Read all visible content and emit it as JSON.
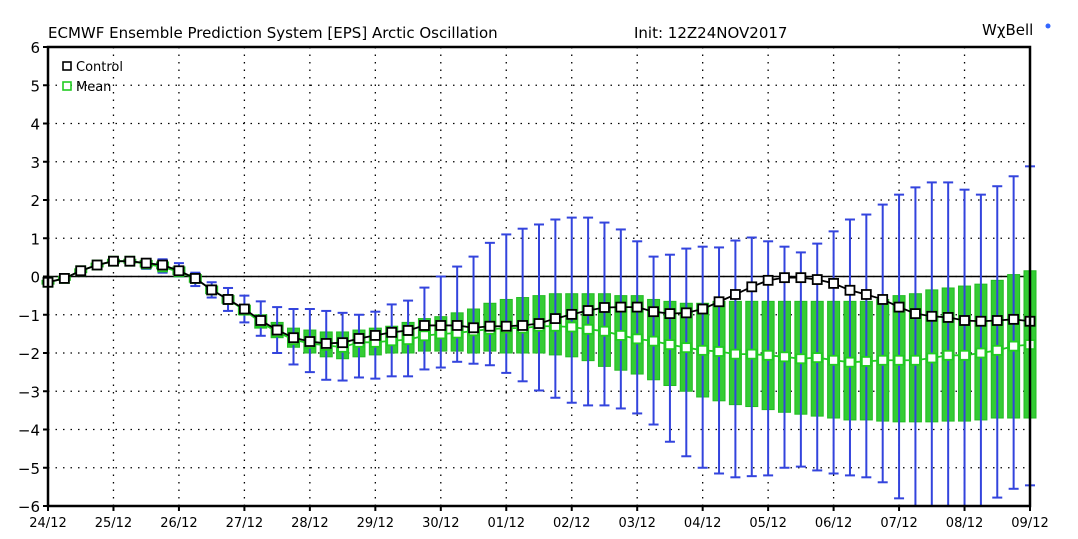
{
  "chart_data": {
    "type": "line",
    "title": "ECMWF  Ensemble  Prediction  System  [EPS]  Arctic  Oscillation",
    "init": "Init:  12Z24NOV2017",
    "logo": "WχBell",
    "xlabel": "",
    "ylabel": "",
    "ylim": [
      -6,
      6
    ],
    "yticks": [
      "-6",
      "-5",
      "-4",
      "-3",
      "-2",
      "-1",
      "0",
      "1",
      "2",
      "3",
      "4",
      "5",
      "6"
    ],
    "xticks": [
      "24/12",
      "25/12",
      "26/12",
      "27/12",
      "28/12",
      "29/12",
      "30/12",
      "01/12",
      "02/12",
      "03/12",
      "04/12",
      "05/12",
      "06/12",
      "07/12",
      "08/12",
      "09/12"
    ],
    "step_hours": 6,
    "grid": true,
    "legend_position": "top-left",
    "colors": {
      "control": "#000000",
      "mean": "#22cc22",
      "box": "#33cc33",
      "whisker": "#3344dd",
      "axis": "#000000"
    },
    "series": [
      {
        "name": "Control",
        "values": [
          -0.15,
          -0.05,
          0.15,
          0.3,
          0.4,
          0.4,
          0.35,
          0.3,
          0.15,
          -0.05,
          -0.35,
          -0.6,
          -0.85,
          -1.15,
          -1.4,
          -1.6,
          -1.7,
          -1.75,
          -1.73,
          -1.62,
          -1.54,
          -1.46,
          -1.41,
          -1.28,
          -1.28,
          -1.28,
          -1.34,
          -1.3,
          -1.3,
          -1.28,
          -1.23,
          -1.1,
          -0.99,
          -0.89,
          -0.81,
          -0.8,
          -0.8,
          -0.92,
          -0.97,
          -0.95,
          -0.85,
          -0.66,
          -0.47,
          -0.27,
          -0.1,
          -0.03,
          -0.03,
          -0.08,
          -0.18,
          -0.36,
          -0.47,
          -0.6,
          -0.8,
          -0.97,
          -1.04,
          -1.07,
          -1.15,
          -1.17,
          -1.15,
          -1.12,
          -1.17
        ]
      },
      {
        "name": "Mean",
        "values": [
          -0.15,
          -0.05,
          0.15,
          0.3,
          0.4,
          0.4,
          0.33,
          0.25,
          0.12,
          -0.05,
          -0.35,
          -0.6,
          -0.88,
          -1.2,
          -1.45,
          -1.65,
          -1.75,
          -1.8,
          -1.85,
          -1.72,
          -1.72,
          -1.68,
          -1.65,
          -1.55,
          -1.5,
          -1.48,
          -1.42,
          -1.38,
          -1.35,
          -1.35,
          -1.3,
          -1.3,
          -1.32,
          -1.38,
          -1.43,
          -1.54,
          -1.63,
          -1.69,
          -1.78,
          -1.86,
          -1.93,
          -1.96,
          -2.03,
          -2.03,
          -2.06,
          -2.1,
          -2.15,
          -2.12,
          -2.19,
          -2.24,
          -2.22,
          -2.19,
          -2.19,
          -2.19,
          -2.13,
          -2.06,
          -2.06,
          -2.0,
          -1.93,
          -1.82,
          -1.78
        ]
      }
    ],
    "box_hi": [
      -0.1,
      0,
      0.2,
      0.35,
      0.45,
      0.45,
      0.42,
      0.38,
      0.25,
      0.05,
      -0.25,
      -0.5,
      -0.75,
      -1.0,
      -1.2,
      -1.35,
      -1.4,
      -1.45,
      -1.45,
      -1.4,
      -1.35,
      -1.3,
      -1.2,
      -1.1,
      -1.05,
      -0.95,
      -0.85,
      -0.7,
      -0.6,
      -0.55,
      -0.5,
      -0.45,
      -0.45,
      -0.45,
      -0.45,
      -0.5,
      -0.5,
      -0.6,
      -0.65,
      -0.7,
      -0.7,
      -0.65,
      -0.65,
      -0.65,
      -0.65,
      -0.65,
      -0.65,
      -0.65,
      -0.65,
      -0.65,
      -0.65,
      -0.6,
      -0.5,
      -0.45,
      -0.35,
      -0.3,
      -0.25,
      -0.2,
      -0.1,
      0.05,
      0.15
    ],
    "box_lo": [
      -0.2,
      -0.1,
      0.1,
      0.25,
      0.35,
      0.35,
      0.25,
      0.2,
      0.05,
      -0.15,
      -0.45,
      -0.7,
      -1.0,
      -1.35,
      -1.6,
      -1.85,
      -2.0,
      -2.1,
      -2.15,
      -2.1,
      -2.05,
      -2.0,
      -2.0,
      -1.95,
      -1.95,
      -1.95,
      -2.0,
      -1.95,
      -2.0,
      -2.0,
      -2.0,
      -2.05,
      -2.1,
      -2.2,
      -2.35,
      -2.45,
      -2.55,
      -2.7,
      -2.85,
      -3.0,
      -3.15,
      -3.25,
      -3.35,
      -3.4,
      -3.48,
      -3.55,
      -3.6,
      -3.65,
      -3.7,
      -3.75,
      -3.75,
      -3.78,
      -3.8,
      -3.8,
      -3.8,
      -3.78,
      -3.78,
      -3.75,
      -3.7,
      -3.7,
      -3.7
    ],
    "whisker_hi": [
      -0.1,
      0,
      0.2,
      0.35,
      0.45,
      0.45,
      0.4,
      0.45,
      0.35,
      0.1,
      -0.15,
      -0.3,
      -0.5,
      -0.65,
      -0.8,
      -0.85,
      -0.85,
      -0.9,
      -0.95,
      -1.0,
      -0.92,
      -0.73,
      -0.63,
      -0.29,
      0,
      0.26,
      0.52,
      0.88,
      1.1,
      1.25,
      1.36,
      1.49,
      1.54,
      1.54,
      1.41,
      1.23,
      0.92,
      0.52,
      0.57,
      0.73,
      0.78,
      0.76,
      0.94,
      1.02,
      0.92,
      0.78,
      0.63,
      0.86,
      1.18,
      1.49,
      1.62,
      1.88,
      2.14,
      2.33,
      2.46,
      2.46,
      2.27,
      2.14,
      2.36,
      2.62,
      2.88
    ],
    "whisker_lo": [
      -0.2,
      -0.1,
      0.1,
      0.25,
      0.3,
      0.3,
      0.2,
      0.1,
      0.0,
      -0.25,
      -0.55,
      -0.9,
      -1.2,
      -1.55,
      -2.0,
      -2.3,
      -2.5,
      -2.7,
      -2.72,
      -2.64,
      -2.67,
      -2.61,
      -2.61,
      -2.43,
      -2.38,
      -2.23,
      -2.28,
      -2.32,
      -2.52,
      -2.74,
      -2.98,
      -3.17,
      -3.3,
      -3.37,
      -3.37,
      -3.45,
      -3.58,
      -3.87,
      -4.32,
      -4.7,
      -5.0,
      -5.15,
      -5.25,
      -5.22,
      -5.2,
      -5.0,
      -4.97,
      -5.07,
      -5.15,
      -5.2,
      -5.25,
      -5.38,
      -5.8,
      -6,
      -6,
      -6,
      -6,
      -6,
      -5.78,
      -5.55,
      -5.46
    ]
  }
}
